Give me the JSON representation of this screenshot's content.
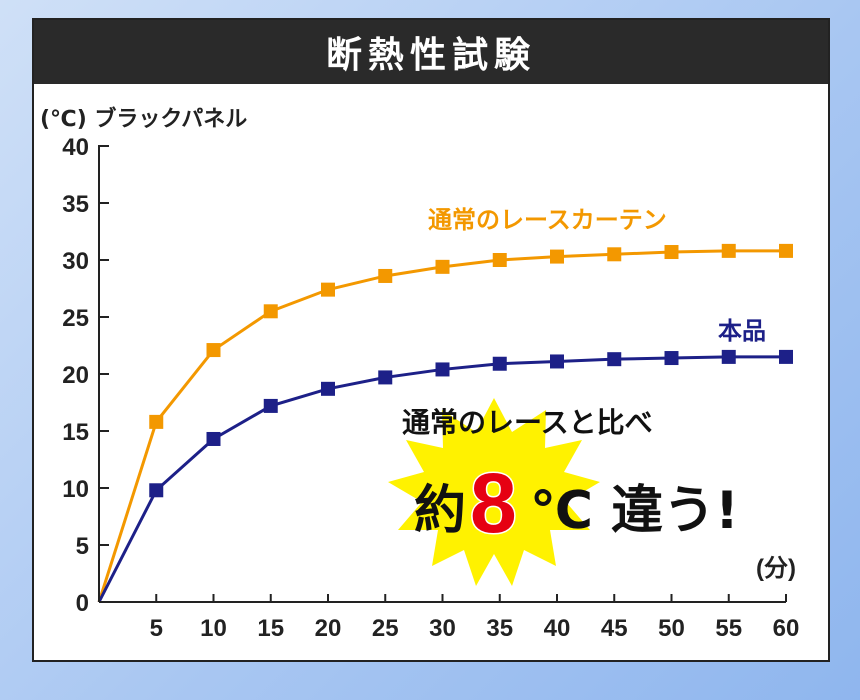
{
  "title": "断熱性試験",
  "chart_data": {
    "type": "line",
    "ylabel": "(℃) ブラックパネル",
    "xlabel": "(分)",
    "x": [
      0,
      5,
      10,
      15,
      20,
      25,
      30,
      35,
      40,
      45,
      50,
      55,
      60
    ],
    "x_tick_labels": [
      "5",
      "10",
      "15",
      "20",
      "25",
      "30",
      "35",
      "40",
      "45",
      "50",
      "55",
      "60"
    ],
    "y_ticks": [
      "0",
      "5",
      "10",
      "15",
      "20",
      "25",
      "30",
      "35",
      "40"
    ],
    "xlim": [
      0,
      60
    ],
    "ylim": [
      0,
      40
    ],
    "grid": false,
    "series": [
      {
        "name": "通常のレースカーテン",
        "color": "#f39800",
        "values": [
          0,
          15.8,
          22.1,
          25.5,
          27.4,
          28.6,
          29.4,
          30.0,
          30.3,
          30.5,
          30.7,
          30.8,
          30.8
        ]
      },
      {
        "name": "本品",
        "color": "#1d2088",
        "values": [
          0,
          9.8,
          14.3,
          17.2,
          18.7,
          19.7,
          20.4,
          20.9,
          21.1,
          21.3,
          21.4,
          21.5,
          21.5
        ]
      }
    ],
    "annotation": {
      "line1": "通常のレースと比べ",
      "prefix": "約",
      "number": "8",
      "suffix": "℃ 違う!"
    }
  }
}
